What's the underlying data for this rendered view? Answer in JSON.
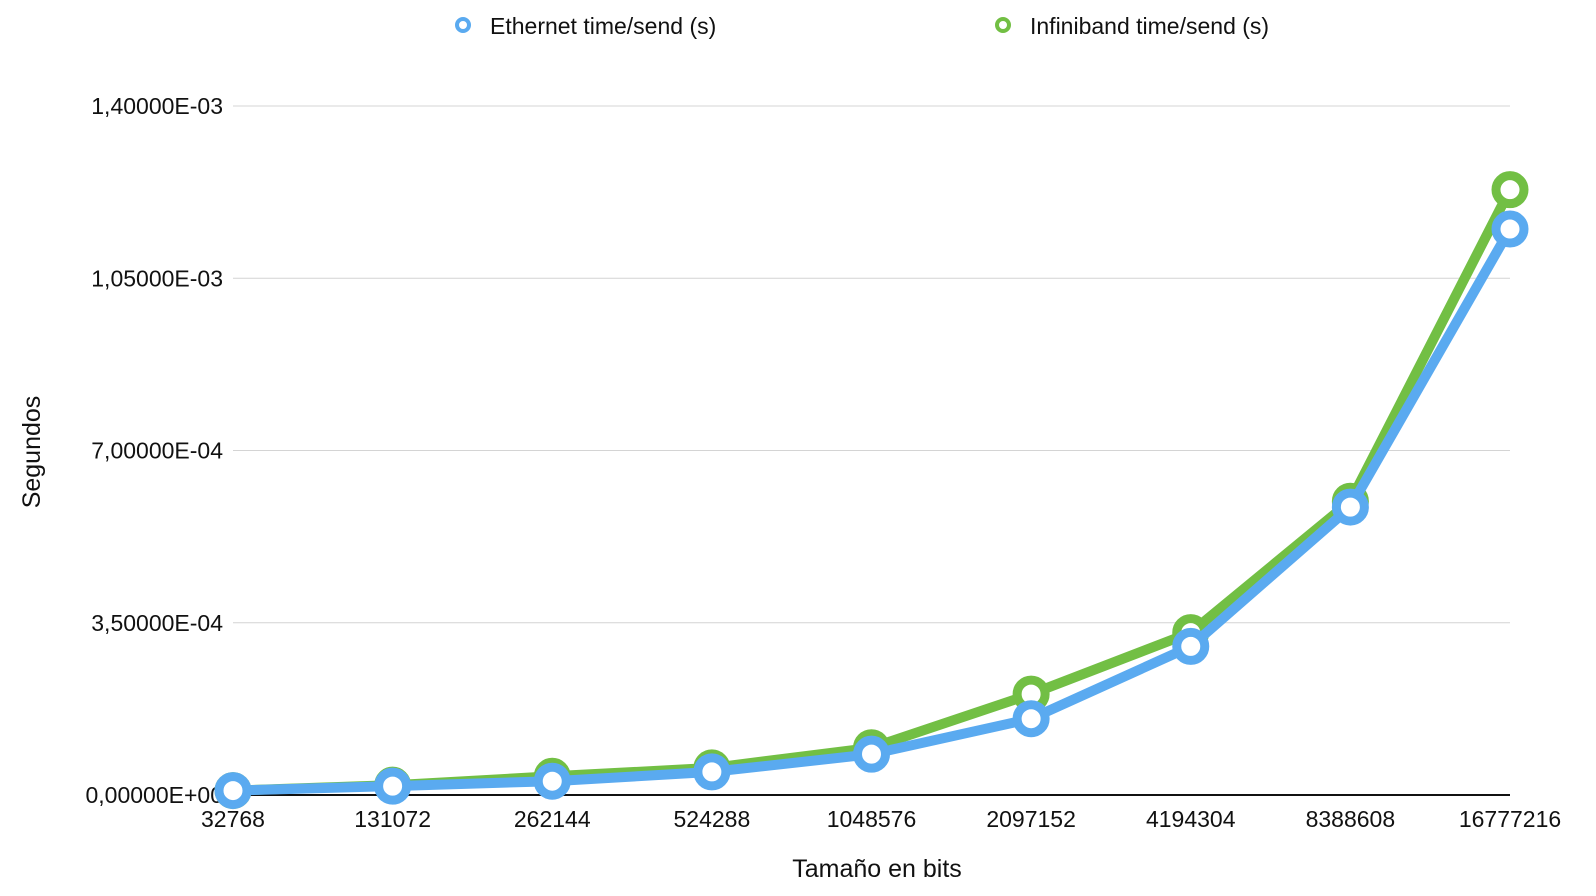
{
  "chart_data": {
    "type": "line",
    "title": "",
    "xlabel": "Tamaño en bits",
    "ylabel": "Segundos",
    "categories": [
      "32768",
      "131072",
      "262144",
      "524288",
      "1048576",
      "2097152",
      "4194304",
      "8388608",
      "16777216"
    ],
    "y_ticks": [
      "0,00000E+00",
      "3,50000E-04",
      "7,00000E-04",
      "1,05000E-03",
      "1,40000E-03"
    ],
    "ylim": [
      0,
      0.0014
    ],
    "grid": true,
    "legend_position": "top",
    "series": [
      {
        "name": "Ethernet time/send (s)",
        "color": "#5aaaf0",
        "values": [
          9e-06,
          1.8e-05,
          2.8e-05,
          4.7e-05,
          8.3e-05,
          0.000155,
          0.000302,
          0.000585,
          0.00115
        ]
      },
      {
        "name": "Infiniband time/send (s)",
        "color": "#72bf44",
        "values": [
          9e-06,
          2e-05,
          3.8e-05,
          5.5e-05,
          9.6e-05,
          0.000205,
          0.00033,
          0.000597,
          0.00123
        ]
      }
    ]
  }
}
